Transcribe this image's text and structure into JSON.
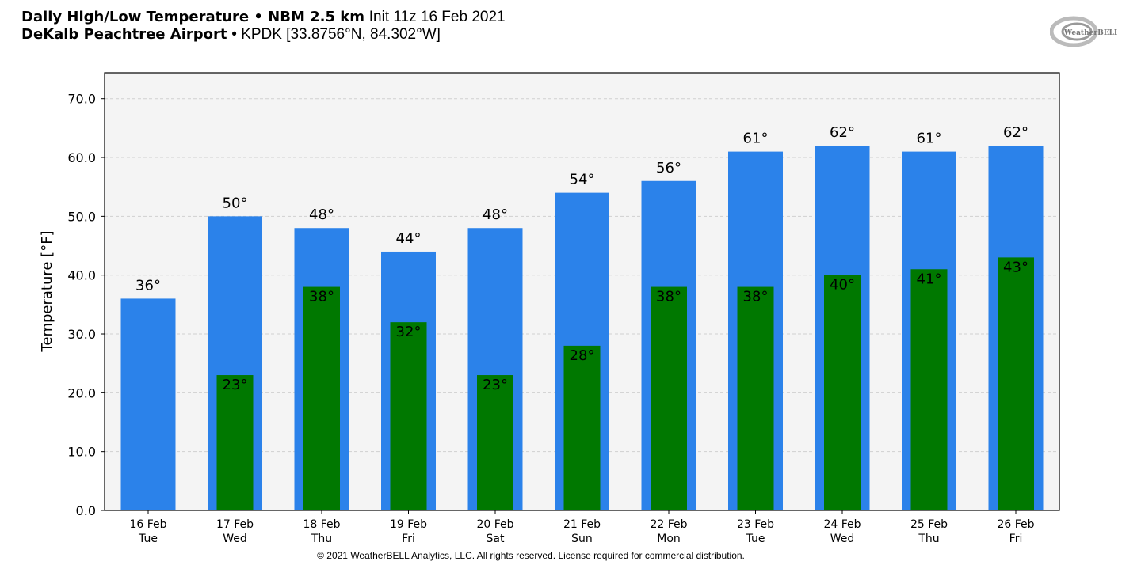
{
  "header": {
    "title_bold": "Daily High/Low Temperature • NBM 2.5 km",
    "title_init": "Init 11z 16 Feb 2021",
    "location_bold": "DeKalb Peachtree Airport",
    "location_detail": "• KPDK [33.8756°N, 84.302°W]",
    "logo_text": "WeatherBELL"
  },
  "footer": {
    "copyright": "© 2021 WeatherBELL Analytics, LLC. All rights reserved. License required for commercial distribution."
  },
  "chart_data": {
    "type": "bar",
    "title": "Daily High/Low Temperature • NBM 2.5 km",
    "xlabel": "",
    "ylabel": "Temperature [°F]",
    "ylim": [
      0,
      74.4
    ],
    "yticks": [
      "0.0",
      "10.0",
      "20.0",
      "30.0",
      "40.0",
      "50.0",
      "60.0",
      "70.0"
    ],
    "grid": true,
    "categories": [
      "16 Feb",
      "17 Feb",
      "18 Feb",
      "19 Feb",
      "20 Feb",
      "21 Feb",
      "22 Feb",
      "23 Feb",
      "24 Feb",
      "25 Feb",
      "26 Feb"
    ],
    "weekdays": [
      "Tue",
      "Wed",
      "Thu",
      "Fri",
      "Sat",
      "Sun",
      "Mon",
      "Tue",
      "Wed",
      "Thu",
      "Fri"
    ],
    "series": [
      {
        "name": "High",
        "color": "#2b82ea",
        "values": [
          36,
          50,
          48,
          44,
          48,
          54,
          56,
          61,
          62,
          61,
          62
        ]
      },
      {
        "name": "Low",
        "color": "#007800",
        "values": [
          null,
          23,
          38,
          32,
          23,
          28,
          38,
          38,
          40,
          41,
          43
        ]
      }
    ]
  }
}
